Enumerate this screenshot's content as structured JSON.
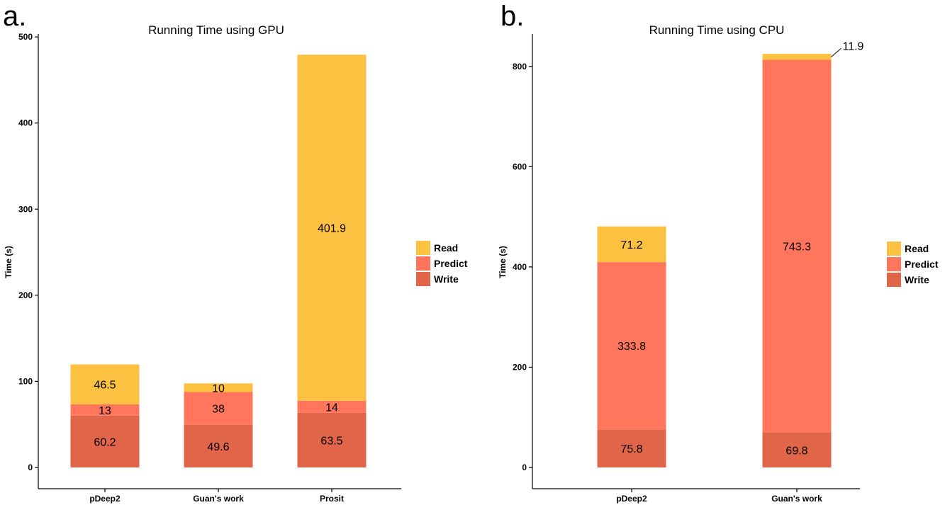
{
  "chart_data": [
    {
      "panel_label": "a.",
      "type": "bar",
      "stacked": true,
      "title": "Running Time using GPU",
      "ylabel": "Time (s)",
      "xlabel": "",
      "ylim": [
        0,
        500
      ],
      "yticks": [
        0,
        100,
        200,
        300,
        400,
        500
      ],
      "categories": [
        "pDeep2",
        "Guan's work",
        "Prosit"
      ],
      "series": [
        {
          "name": "Write",
          "color": "#E06549",
          "values": [
            60.2,
            49.6,
            63.5
          ],
          "labels": [
            "60.2",
            "49.6",
            "63.5"
          ]
        },
        {
          "name": "Predict",
          "color": "#FF765D",
          "values": [
            13,
            38,
            14
          ],
          "labels": [
            "13",
            "38",
            "14"
          ]
        },
        {
          "name": "Read",
          "color": "#FCC140",
          "values": [
            46.5,
            10,
            401.9
          ],
          "labels": [
            "46.5",
            "10",
            "401.9"
          ]
        }
      ],
      "legend_order": [
        "Read",
        "Predict",
        "Write"
      ],
      "legend_position": "right",
      "grid": false
    },
    {
      "panel_label": "b.",
      "type": "bar",
      "stacked": true,
      "title": "Running Time using CPU",
      "ylabel": "Time (s)",
      "xlabel": "",
      "ylim": [
        0,
        850
      ],
      "yticks": [
        0,
        200,
        400,
        600,
        800
      ],
      "categories": [
        "pDeep2",
        "Guan's work"
      ],
      "series": [
        {
          "name": "Write",
          "color": "#E06549",
          "values": [
            75.8,
            69.8
          ],
          "labels": [
            "75.8",
            "69.8"
          ]
        },
        {
          "name": "Predict",
          "color": "#FF765D",
          "values": [
            333.8,
            743.3
          ],
          "labels": [
            "333.8",
            "743.3"
          ]
        },
        {
          "name": "Read",
          "color": "#FCC140",
          "values": [
            71.2,
            11.9
          ],
          "labels": [
            "71.2",
            "11.9"
          ]
        }
      ],
      "callout_labels": [
        {
          "category": "Guan's work",
          "series": "Read"
        }
      ],
      "legend_order": [
        "Read",
        "Predict",
        "Write"
      ],
      "legend_position": "right",
      "grid": false
    }
  ]
}
